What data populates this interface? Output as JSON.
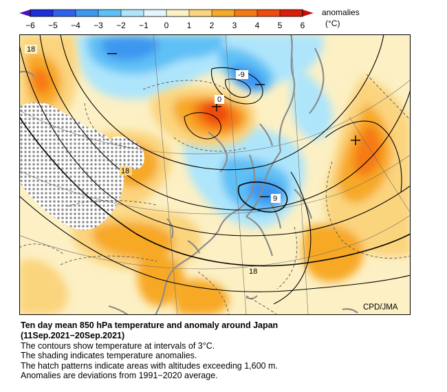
{
  "colorbar": {
    "ticks": [
      "−6",
      "−5",
      "−4",
      "−3",
      "−2",
      "−1",
      "0",
      "1",
      "2",
      "3",
      "4",
      "5",
      "6"
    ],
    "label_line1": "anomalies",
    "label_line2": "(°C)",
    "colors": [
      "#1c2fd8",
      "#2f63ee",
      "#3e97f0",
      "#5fc0f6",
      "#aee5fb",
      "#e1f6fd",
      "#fcf0c4",
      "#fbd47e",
      "#f7a928",
      "#f67a14",
      "#ef4a0f",
      "#d91e0c"
    ]
  },
  "map": {
    "contour_labels": [
      {
        "name": "contour-label-18-northwest",
        "text": "18"
      },
      {
        "name": "contour-label-0",
        "text": "0"
      },
      {
        "name": "contour-label-minus9-north",
        "text": "-9"
      },
      {
        "name": "contour-label-18-west",
        "text": "18"
      },
      {
        "name": "contour-label-9-center",
        "text": "9"
      },
      {
        "name": "contour-label-18-south",
        "text": "18"
      }
    ],
    "credit": "CPD/JMA",
    "colors": {
      "ocean_anomaly_base": "#fcf0c4",
      "hatch_dot": "#8a8a8a",
      "coastline": "#8c8c8c",
      "contour": "#000000"
    }
  },
  "caption": {
    "title_line1": "Ten day mean 850 hPa temperature and anomaly around Japan",
    "title_line2": "(11Sep.2021−20Sep.2021)",
    "lines": [
      "The contours show temperature at intervals of 3°C.",
      "The shading indicates temperature anomalies.",
      "The hatch patterns indicate areas with altitudes exceeding 1,600 m.",
      "Anomalies are deviations from 1991−2020 average."
    ]
  }
}
